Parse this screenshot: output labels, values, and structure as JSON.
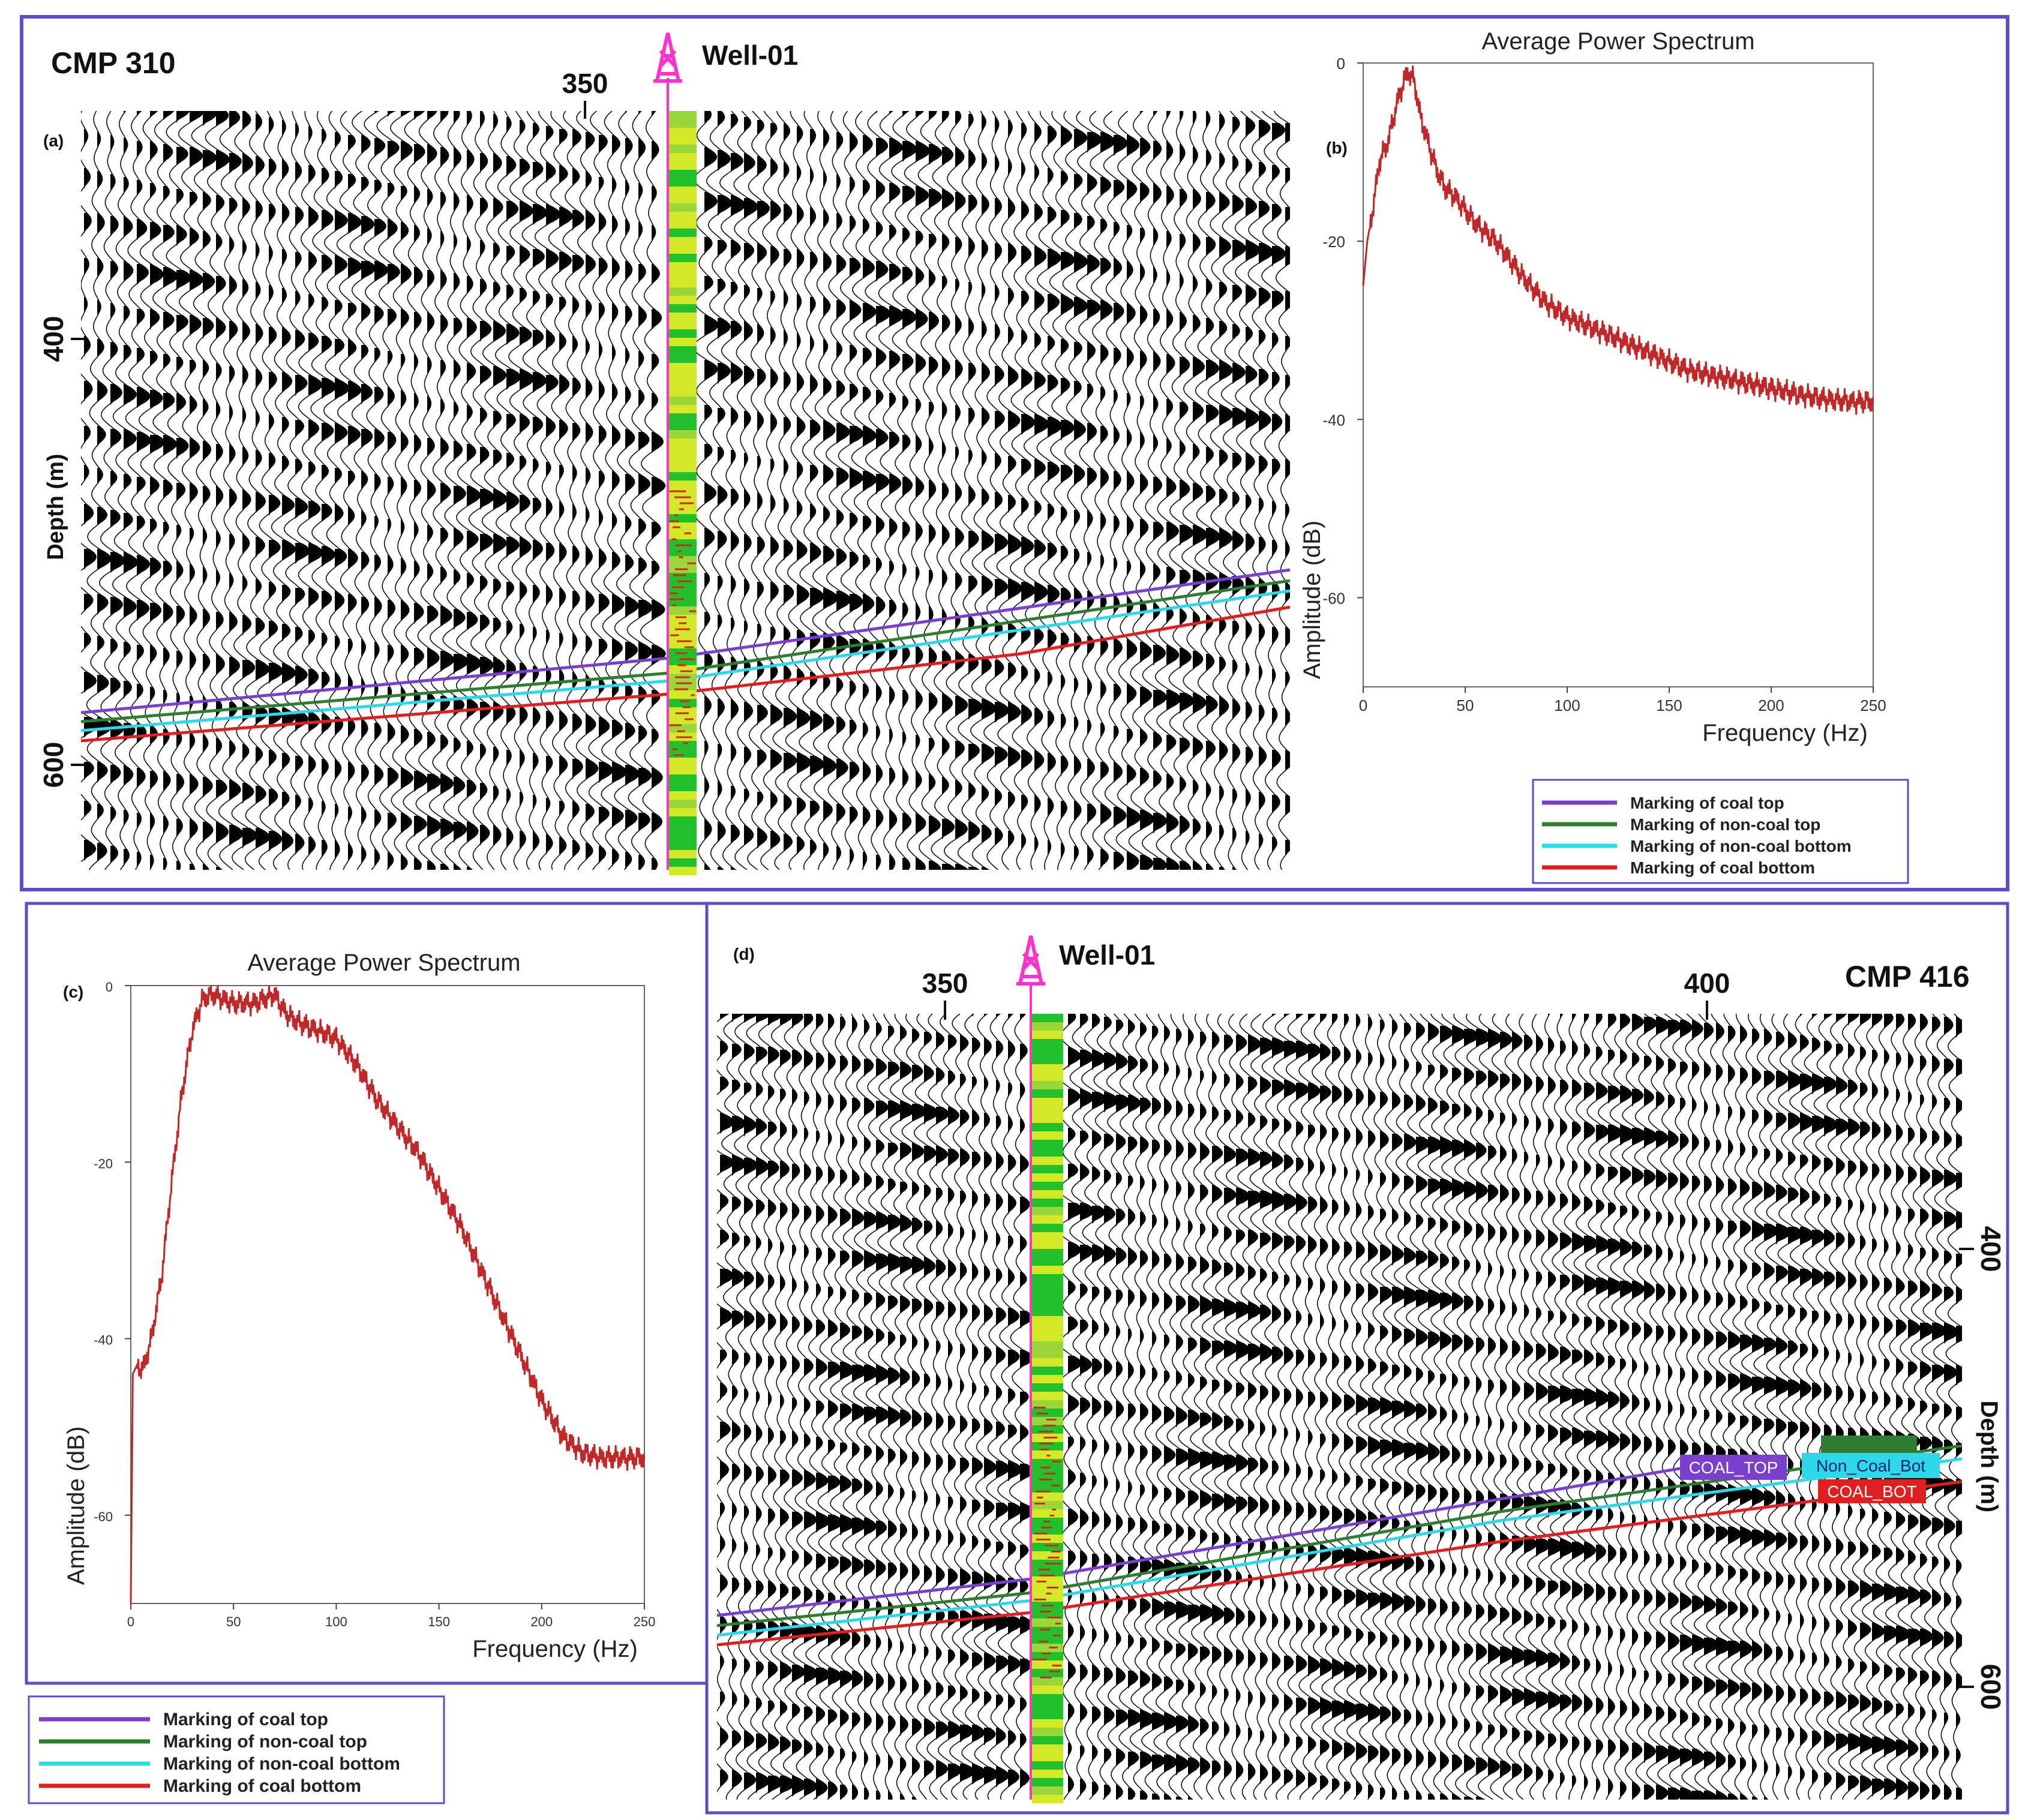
{
  "panel_a": {
    "panel_label": "(a)",
    "cmp_label": "CMP 310",
    "well_label": "Well-01",
    "trace_tick": "350",
    "depth_axis_label": "Depth (m)",
    "depth_ticks": [
      "400",
      "600"
    ]
  },
  "panel_d": {
    "panel_label": "(d)",
    "cmp_label": "CMP 416",
    "well_label": "Well-01",
    "trace_ticks": [
      "350",
      "400"
    ],
    "depth_axis_label": "Depth (m)",
    "depth_ticks": [
      "400",
      "600"
    ],
    "horizon_tags": {
      "coal_top": "COAL_TOP",
      "non_coal_bot": "Non_Coal_Bot",
      "coal_bot": "COAL_BOT"
    }
  },
  "legend": {
    "items": [
      {
        "label": "Marking of coal top",
        "color": "#7b3fd0"
      },
      {
        "label": "Marking of non-coal top",
        "color": "#2e7d32"
      },
      {
        "label": "Marking of non-coal bottom",
        "color": "#2fd8e8"
      },
      {
        "label": "Marking of coal bottom",
        "color": "#e02020"
      }
    ]
  },
  "colors": {
    "frame": "#5a4fc8",
    "well": "#ff33cc",
    "spectrum_line": "#c0282a",
    "log_green": "#22c02a",
    "log_yellow": "#d4e82a"
  },
  "chart_data": [
    {
      "type": "line",
      "panel_label": "(b)",
      "title": "Average Power Spectrum",
      "xlabel": "Frequency (Hz)",
      "ylabel": "Amplitude (dB)",
      "xlim": [
        0,
        250
      ],
      "ylim": [
        -70,
        0
      ],
      "xticks": [
        "0",
        "50",
        "100",
        "150",
        "200",
        "250"
      ],
      "yticks": [
        "0",
        "-20",
        "-40",
        "-60"
      ],
      "series": [
        {
          "name": "Average power spectrum",
          "x": [
            0,
            2,
            5,
            8,
            12,
            16,
            20,
            22,
            25,
            28,
            32,
            36,
            40,
            45,
            50,
            55,
            60,
            65,
            70,
            75,
            80,
            90,
            100,
            110,
            120,
            130,
            140,
            150,
            160,
            170,
            180,
            190,
            200,
            210,
            220,
            230,
            240,
            250
          ],
          "y": [
            -25,
            -20,
            -16,
            -11,
            -9,
            -5,
            -2,
            -1,
            -2,
            -6,
            -9,
            -12,
            -14,
            -15,
            -16.5,
            -18,
            -19,
            -20,
            -21.5,
            -23,
            -24.5,
            -27,
            -28.5,
            -29.5,
            -30.5,
            -31.5,
            -32.5,
            -33.5,
            -34.5,
            -35,
            -35.5,
            -36,
            -36.5,
            -37,
            -37.5,
            -37.8,
            -38,
            -38
          ]
        }
      ]
    },
    {
      "type": "line",
      "panel_label": "(c)",
      "title": "Average Power Spectrum",
      "xlabel": "Frequency (Hz)",
      "ylabel": "Amplitude (dB)",
      "xlim": [
        0,
        250
      ],
      "ylim": [
        -70,
        0
      ],
      "xticks": [
        "0",
        "50",
        "100",
        "150",
        "200",
        "250"
      ],
      "yticks": [
        "0",
        "-20",
        "-40",
        "-60"
      ],
      "series": [
        {
          "name": "Average power spectrum",
          "x": [
            0,
            1,
            3,
            6,
            10,
            15,
            20,
            25,
            30,
            35,
            40,
            50,
            60,
            65,
            70,
            75,
            80,
            90,
            100,
            110,
            120,
            130,
            140,
            150,
            160,
            170,
            180,
            190,
            200,
            210,
            220,
            230,
            240,
            250
          ],
          "y": [
            -70,
            -44,
            -43,
            -43.5,
            -40,
            -33,
            -22,
            -12,
            -5,
            -1.5,
            -1,
            -2,
            -2,
            -1.5,
            -1,
            -3,
            -4,
            -5,
            -6,
            -9,
            -13,
            -16,
            -19,
            -23,
            -27,
            -32,
            -37,
            -42,
            -47,
            -51,
            -53,
            -53.5,
            -53.5,
            -53.5
          ]
        }
      ]
    }
  ]
}
